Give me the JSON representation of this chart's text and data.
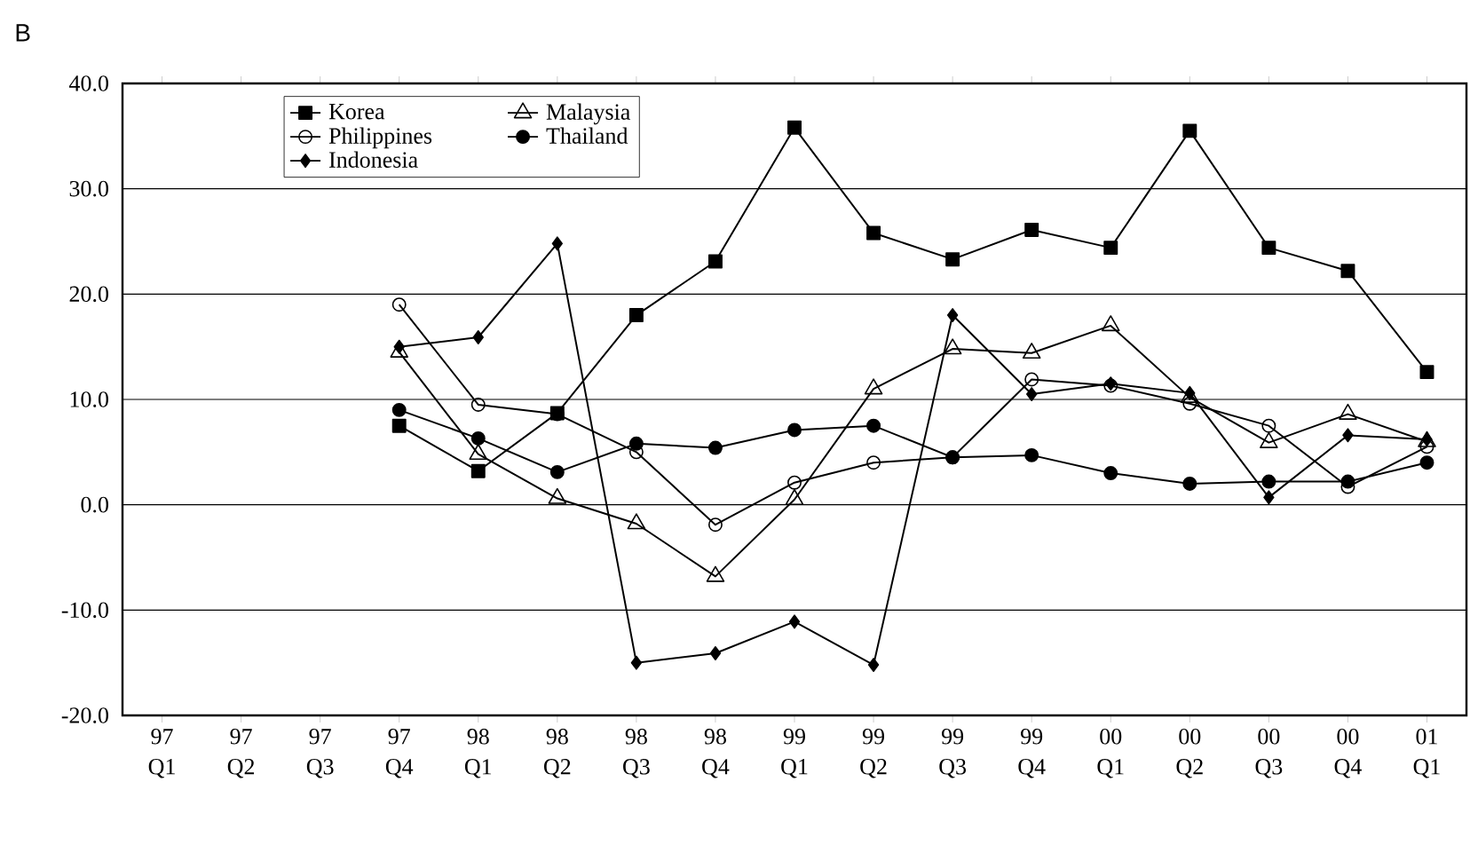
{
  "chart_data": {
    "type": "line",
    "title": "B",
    "categories": [
      "97 Q1",
      "97 Q2",
      "97 Q3",
      "97 Q4",
      "98 Q1",
      "98 Q2",
      "98 Q3",
      "98 Q4",
      "99 Q1",
      "99 Q2",
      "99 Q3",
      "99 Q4",
      "00 Q1",
      "00 Q2",
      "00 Q3",
      "00 Q4",
      "01 Q1"
    ],
    "series": [
      {
        "name": "Korea",
        "color": "#000000",
        "marker": "square",
        "values": [
          null,
          null,
          null,
          7.5,
          3.2,
          8.7,
          18.0,
          23.1,
          35.8,
          25.8,
          23.3,
          26.1,
          24.4,
          35.5,
          24.4,
          22.2,
          12.6
        ]
      },
      {
        "name": "Malaysia",
        "color": "#000000",
        "marker": "triangle",
        "values": [
          null,
          null,
          null,
          14.5,
          4.8,
          0.6,
          -1.8,
          -6.8,
          0.5,
          11.0,
          14.8,
          14.4,
          17.0,
          10.2,
          5.9,
          8.6,
          6.0
        ]
      },
      {
        "name": "Philippines",
        "color": "#000000",
        "marker": "open circle",
        "values": [
          null,
          null,
          null,
          19.0,
          9.5,
          8.6,
          5.0,
          -1.9,
          2.1,
          4.0,
          4.5,
          11.9,
          11.3,
          9.6,
          7.5,
          1.7,
          5.5
        ]
      },
      {
        "name": "Thailand",
        "color": "#000000",
        "marker": "circle",
        "values": [
          null,
          null,
          null,
          9.0,
          6.3,
          3.1,
          5.8,
          5.4,
          7.1,
          7.5,
          4.5,
          4.7,
          3.0,
          2.0,
          2.2,
          2.2,
          4.0
        ]
      },
      {
        "name": "Indonesia",
        "color": "#000000",
        "marker": "diamond",
        "values": [
          null,
          null,
          null,
          15.0,
          15.9,
          24.8,
          -15.0,
          -14.1,
          -11.1,
          -15.2,
          18.0,
          10.5,
          11.5,
          10.6,
          0.7,
          6.6,
          6.2
        ]
      }
    ],
    "ylim": [
      -20,
      40
    ],
    "yticks": [
      {
        "value": -20,
        "label": "-20.0"
      },
      {
        "value": -10,
        "label": "-10.0"
      },
      {
        "value": 0,
        "label": "0.0"
      },
      {
        "value": 10,
        "label": "10.0"
      },
      {
        "value": 20,
        "label": "20.0"
      },
      {
        "value": 30,
        "label": "30.0"
      },
      {
        "value": 40,
        "label": "40.0"
      }
    ],
    "grid": "y",
    "legend": "top left",
    "line_style": "solid"
  }
}
